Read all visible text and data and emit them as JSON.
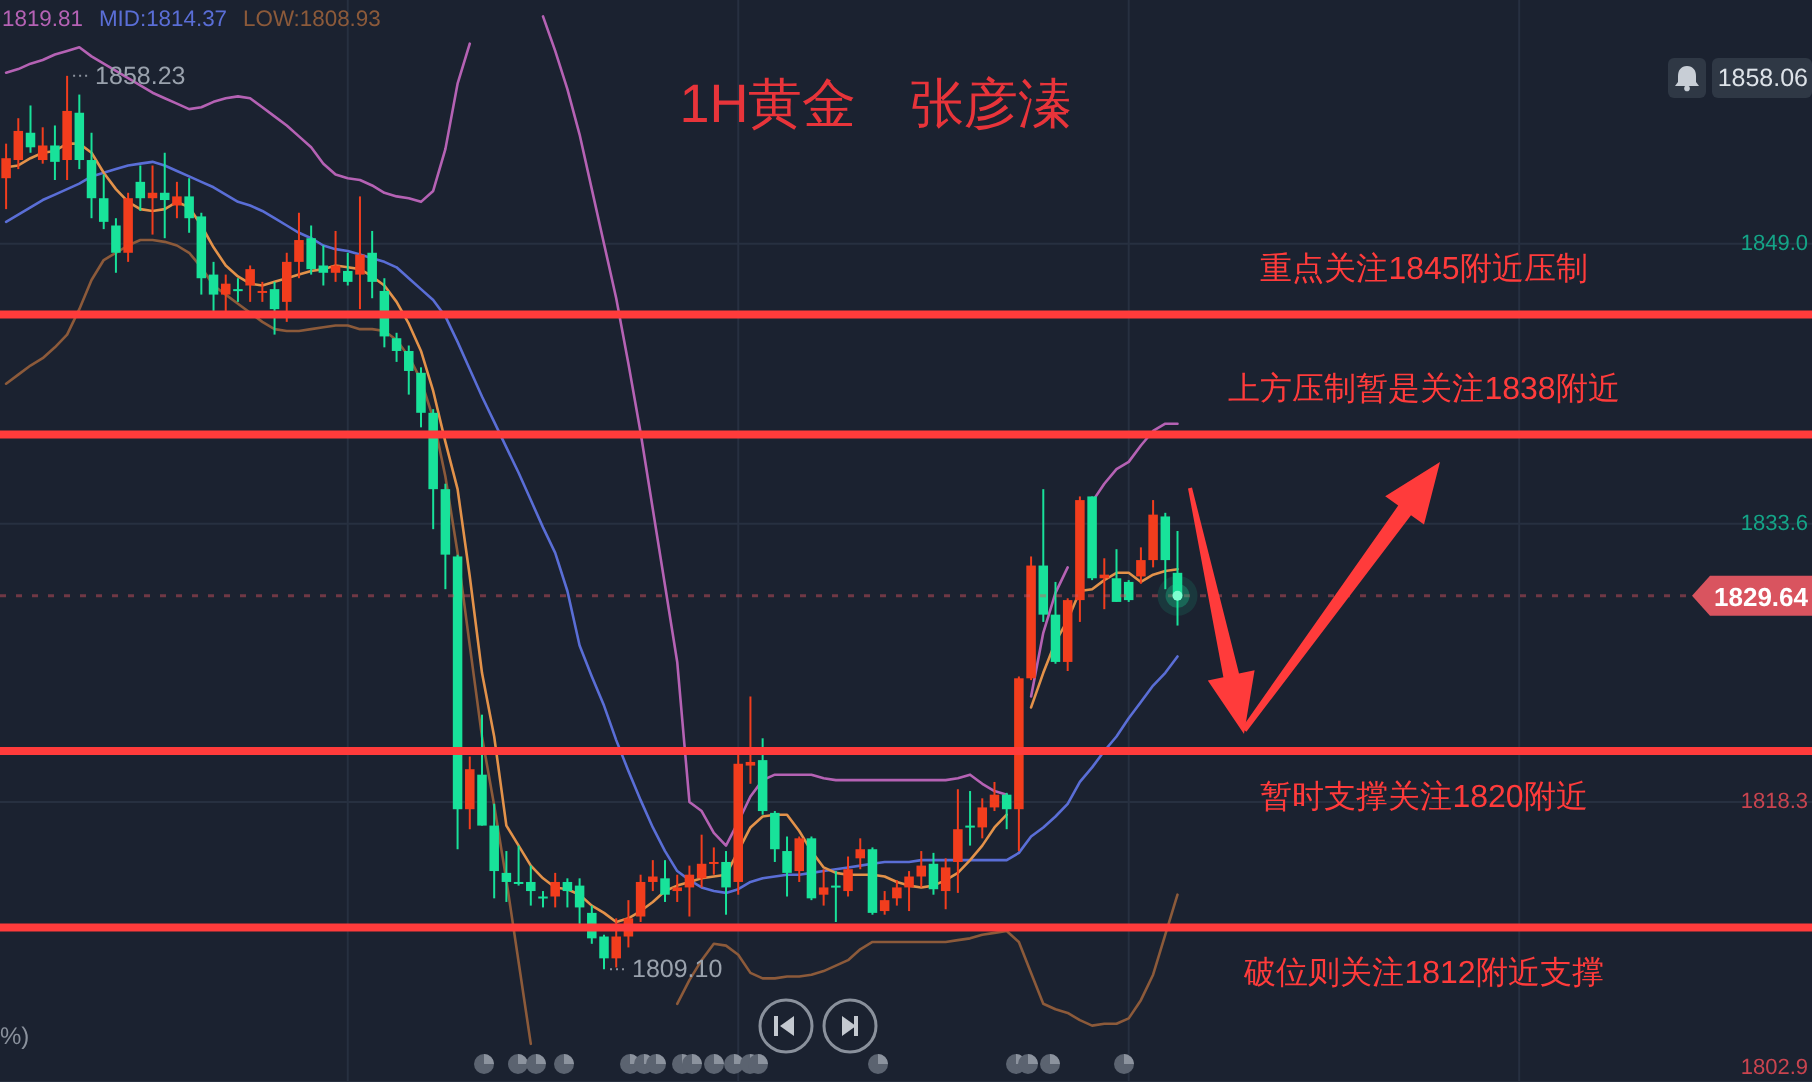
{
  "chart_data": {
    "type": "candlestick",
    "title": "1H黄金　张彦溱",
    "categories": [
      null,
      null,
      null,
      null,
      null,
      null,
      null,
      null,
      null,
      null,
      null,
      null,
      null,
      null,
      null,
      null,
      null,
      null,
      null,
      null,
      null,
      null,
      null,
      null,
      null,
      null,
      null,
      null,
      null,
      null,
      null,
      null,
      null,
      null,
      null,
      null,
      null,
      null,
      null,
      null,
      null,
      null,
      null,
      null,
      null,
      null,
      null,
      null,
      null,
      null,
      null,
      null,
      null,
      null,
      null,
      null,
      null,
      null,
      null,
      null,
      null,
      null,
      null,
      null,
      null,
      null,
      null,
      null,
      null,
      null,
      null,
      null,
      null,
      null,
      null,
      null,
      null,
      null,
      null,
      null,
      null,
      null,
      null,
      null,
      null,
      null,
      null,
      null,
      null,
      null,
      null,
      null,
      null,
      null,
      null,
      null,
      null
    ],
    "ohlc": [
      [
        1852.6,
        1854.5,
        1850.9,
        1853.7
      ],
      [
        1853.6,
        1855.9,
        1853.1,
        1855.2
      ],
      [
        1855.1,
        1856.6,
        1854.0,
        1854.3
      ],
      [
        1853.6,
        1855.4,
        1853.4,
        1854.4
      ],
      [
        1854.4,
        1855.5,
        1852.5,
        1853.5
      ],
      [
        1853.6,
        1858.23,
        1852.5,
        1856.3
      ],
      [
        1856.2,
        1857.2,
        1853.1,
        1853.6
      ],
      [
        1853.6,
        1855.1,
        1850.4,
        1851.5
      ],
      [
        1851.5,
        1852.8,
        1849.8,
        1850.2
      ],
      [
        1850.0,
        1850.4,
        1847.4,
        1848.5
      ],
      [
        1848.5,
        1851.8,
        1848.0,
        1851.5
      ],
      [
        1852.4,
        1853.3,
        1850.8,
        1851.5
      ],
      [
        1851.5,
        1853.3,
        1849.5,
        1851.8
      ],
      [
        1851.8,
        1854.0,
        1849.3,
        1851.4
      ],
      [
        1851.1,
        1852.4,
        1850.4,
        1851.6
      ],
      [
        1851.6,
        1852.6,
        1849.6,
        1850.4
      ],
      [
        1850.5,
        1850.7,
        1846.2,
        1847.1
      ],
      [
        1847.3,
        1848.0,
        1845.3,
        1846.2
      ],
      [
        1846.2,
        1847.3,
        1845.3,
        1846.8
      ],
      [
        1846.5,
        1847.1,
        1845.8,
        1846.4
      ],
      [
        1846.7,
        1847.8,
        1845.8,
        1847.6
      ],
      [
        1846.3,
        1846.9,
        1845.8,
        1846.4
      ],
      [
        1846.5,
        1846.9,
        1844.0,
        1845.4
      ],
      [
        1845.8,
        1848.5,
        1844.7,
        1848.0
      ],
      [
        1848.0,
        1850.7,
        1847.1,
        1849.2
      ],
      [
        1849.3,
        1850.0,
        1847.3,
        1847.6
      ],
      [
        1847.8,
        1848.9,
        1846.7,
        1847.4
      ],
      [
        1847.4,
        1849.7,
        1846.9,
        1847.8
      ],
      [
        1847.5,
        1848.5,
        1846.7,
        1846.9
      ],
      [
        1847.3,
        1851.6,
        1845.4,
        1848.4
      ],
      [
        1848.5,
        1849.7,
        1846.0,
        1846.9
      ],
      [
        1846.4,
        1847.1,
        1843.3,
        1843.9
      ],
      [
        1843.8,
        1844.1,
        1842.5,
        1843.1
      ],
      [
        1843.1,
        1843.4,
        1840.7,
        1842.0
      ],
      [
        1841.9,
        1842.2,
        1838.9,
        1839.7
      ],
      [
        1839.7,
        1839.9,
        1833.3,
        1835.5
      ],
      [
        1835.5,
        1835.8,
        1830.0,
        1831.9
      ],
      [
        1831.8,
        1831.9,
        1815.7,
        1817.9
      ],
      [
        1817.9,
        1820.8,
        1816.8,
        1820.1
      ],
      [
        1819.8,
        1823.1,
        1817.0,
        1817.0
      ],
      [
        1817.0,
        1818.2,
        1813.0,
        1814.5
      ],
      [
        1814.4,
        1815.6,
        1812.8,
        1813.9
      ],
      [
        1813.9,
        1815.9,
        1813.7,
        1813.8
      ],
      [
        1813.9,
        1814.8,
        1812.6,
        1813.4
      ],
      [
        1813.1,
        1813.4,
        1812.5,
        1813.0
      ],
      [
        1813.1,
        1814.4,
        1812.5,
        1813.9
      ],
      [
        1813.9,
        1814.1,
        1812.5,
        1813.4
      ],
      [
        1813.7,
        1814.1,
        1811.6,
        1812.5
      ],
      [
        1812.2,
        1812.6,
        1810.5,
        1810.8
      ],
      [
        1810.9,
        1811.0,
        1809.1,
        1809.7
      ],
      [
        1809.7,
        1811.9,
        1809.2,
        1810.9
      ],
      [
        1810.9,
        1812.9,
        1810.3,
        1811.9
      ],
      [
        1812.0,
        1814.3,
        1811.7,
        1813.9
      ],
      [
        1813.9,
        1815.1,
        1813.4,
        1814.2
      ],
      [
        1814.1,
        1815.1,
        1812.8,
        1813.2
      ],
      [
        1813.4,
        1814.3,
        1812.8,
        1813.6
      ],
      [
        1813.6,
        1814.8,
        1812.0,
        1814.3
      ],
      [
        1814.1,
        1816.5,
        1813.6,
        1814.9
      ],
      [
        1814.9,
        1815.8,
        1814.3,
        1815.0
      ],
      [
        1815.0,
        1815.6,
        1812.1,
        1813.6
      ],
      [
        1813.9,
        1820.9,
        1813.2,
        1820.4
      ],
      [
        1820.3,
        1824.1,
        1819.3,
        1820.5
      ],
      [
        1820.6,
        1821.8,
        1817.6,
        1817.8
      ],
      [
        1817.7,
        1817.8,
        1815.0,
        1815.7
      ],
      [
        1815.6,
        1816.4,
        1813.1,
        1814.4
      ],
      [
        1814.5,
        1816.4,
        1813.9,
        1816.3
      ],
      [
        1816.3,
        1816.4,
        1812.9,
        1813.0
      ],
      [
        1813.2,
        1814.6,
        1812.6,
        1813.6
      ],
      [
        1813.7,
        1814.5,
        1811.7,
        1813.6
      ],
      [
        1813.4,
        1815.3,
        1813.1,
        1814.6
      ],
      [
        1815.2,
        1816.3,
        1814.6,
        1815.7
      ],
      [
        1815.7,
        1815.8,
        1812.1,
        1812.2
      ],
      [
        1812.3,
        1813.4,
        1812.1,
        1812.9
      ],
      [
        1813.0,
        1814.0,
        1812.6,
        1813.6
      ],
      [
        1813.6,
        1814.5,
        1812.3,
        1814.2
      ],
      [
        1814.2,
        1815.6,
        1813.6,
        1814.8
      ],
      [
        1814.9,
        1815.5,
        1813.2,
        1813.5
      ],
      [
        1813.4,
        1815.2,
        1812.4,
        1814.7
      ],
      [
        1815.0,
        1819.0,
        1813.3,
        1816.8
      ],
      [
        1817.0,
        1818.9,
        1815.9,
        1816.9
      ],
      [
        1816.9,
        1818.5,
        1816.3,
        1818.0
      ],
      [
        1818.0,
        1819.4,
        1817.8,
        1818.7
      ],
      [
        1818.7,
        1818.8,
        1816.8,
        1817.9
      ],
      [
        1817.9,
        1825.2,
        1815.6,
        1825.1
      ],
      [
        1825.1,
        1831.8,
        1825.0,
        1831.3
      ],
      [
        1831.3,
        1835.5,
        1828.2,
        1828.6
      ],
      [
        1828.6,
        1830.4,
        1825.9,
        1826.0
      ],
      [
        1826.0,
        1829.5,
        1825.5,
        1829.4
      ],
      [
        1829.4,
        1835.1,
        1828.2,
        1834.9
      ],
      [
        1835.1,
        1835.1,
        1830.5,
        1830.6
      ],
      [
        1830.6,
        1831.7,
        1828.9,
        1830.8
      ],
      [
        1830.6,
        1832.2,
        1829.3,
        1829.3
      ],
      [
        1830.4,
        1830.5,
        1829.3,
        1829.4
      ],
      [
        1830.7,
        1832.3,
        1830.3,
        1831.6
      ],
      [
        1831.6,
        1834.9,
        1831.2,
        1834.1
      ],
      [
        1834.0,
        1834.2,
        1830.0,
        1831.6
      ],
      [
        1830.9,
        1833.2,
        1828.0,
        1829.64
      ]
    ],
    "colors": [
      "#f23d1d",
      "#f23d1d",
      "#18e29a",
      "#f23d1d",
      "#18e29a",
      "#f23d1d",
      "#18e29a",
      "#18e29a",
      "#18e29a",
      "#18e29a",
      "#f23d1d",
      "#18e29a",
      "#f23d1d",
      "#18e29a",
      "#f23d1d",
      "#18e29a",
      "#18e29a",
      "#18e29a",
      "#f23d1d",
      "#18e29a",
      "#f23d1d",
      "#f23d1d",
      "#18e29a",
      "#f23d1d",
      "#f23d1d",
      "#18e29a",
      "#18e29a",
      "#f23d1d",
      "#18e29a",
      "#f23d1d",
      "#18e29a",
      "#18e29a",
      "#18e29a",
      "#18e29a",
      "#18e29a",
      "#18e29a",
      "#18e29a",
      "#18e29a",
      "#f23d1d",
      "#18e29a",
      "#18e29a",
      "#18e29a",
      "#18e29a",
      "#18e29a",
      "#18e29a",
      "#f23d1d",
      "#18e29a",
      "#18e29a",
      "#18e29a",
      "#18e29a",
      "#f23d1d",
      "#f23d1d",
      "#f23d1d",
      "#f23d1d",
      "#18e29a",
      "#f23d1d",
      "#f23d1d",
      "#f23d1d",
      "#f23d1d",
      "#18e29a",
      "#f23d1d",
      "#f23d1d",
      "#18e29a",
      "#18e29a",
      "#18e29a",
      "#f23d1d",
      "#18e29a",
      "#f23d1d",
      "#18e29a",
      "#f23d1d",
      "#f23d1d",
      "#18e29a",
      "#f23d1d",
      "#f23d1d",
      "#f23d1d",
      "#f23d1d",
      "#18e29a",
      "#f23d1d",
      "#f23d1d",
      "#18e29a",
      "#f23d1d",
      "#f23d1d",
      "#18e29a",
      "#f23d1d",
      "#f23d1d",
      "#18e29a",
      "#18e29a",
      "#f23d1d",
      "#f23d1d",
      "#18e29a",
      "#f23d1d",
      "#18e29a",
      "#18e29a",
      "#f23d1d",
      "#f23d1d",
      "#18e29a",
      "#18e29a"
    ],
    "series": [
      {
        "name": "1819.81",
        "type": "line",
        "color": "#b562b4",
        "values": [
          1858.4,
          1858.6,
          1858.9,
          1859.1,
          1859.4,
          1859.6,
          1859.8,
          1859.3,
          1858.9,
          1858.5,
          1858.1,
          1857.7,
          1857.3,
          1857.0,
          1856.7,
          1856.4,
          1856.5,
          1856.8,
          1857.0,
          1857.1,
          1857.0,
          1856.5,
          1856.0,
          1855.5,
          1854.9,
          1854.3,
          1853.4,
          1852.8,
          1852.6,
          1852.5,
          1852.2,
          1851.8,
          1851.6,
          1851.5,
          1851.3,
          1851.9,
          1854.2,
          1857.8,
          1860.0,
          null,
          null,
          null,
          null,
          null,
          1861.5,
          1859.6,
          1857.5,
          1855.0,
          1852.0,
          1849.0,
          1846.0,
          1842.4,
          1838.6,
          1834.4,
          1830.2,
          1826.0,
          1818.3,
          1817.8,
          1816.6,
          1815.9,
          1817.2,
          1818.6,
          1819.5,
          1819.8,
          1819.8,
          1819.8,
          1819.8,
          1819.6,
          1819.5,
          1819.5,
          1819.5,
          1819.5,
          1819.5,
          1819.5,
          1819.5,
          1819.5,
          1819.5,
          1819.5,
          1819.6,
          1819.8,
          1819.3,
          1818.9,
          1818.7,
          null,
          1824.1,
          1827.6,
          1829.8,
          1831.2,
          null,
          1834.8,
          1835.8,
          1836.6,
          1837.0,
          1837.9,
          1838.7,
          1839.1,
          1839.1
        ]
      },
      {
        "name": "MID:1814.37",
        "type": "line",
        "color": "#5a6ed6",
        "values": [
          1850.2,
          1850.6,
          1851.0,
          1851.4,
          1851.7,
          1852.0,
          1852.3,
          1852.7,
          1852.9,
          1853.1,
          1853.3,
          1853.4,
          1853.5,
          1853.3,
          1853.0,
          1852.7,
          1852.4,
          1852.1,
          1851.7,
          1851.3,
          1851.1,
          1850.8,
          1850.4,
          1850.0,
          1849.6,
          1849.3,
          1848.9,
          1848.7,
          1848.6,
          1848.4,
          1848.2,
          1848.0,
          1847.7,
          1847.1,
          1846.5,
          1845.9,
          1845.0,
          1843.6,
          1842.1,
          1840.6,
          1839.2,
          1837.8,
          1836.4,
          1834.9,
          1833.4,
          1832.0,
          1829.9,
          1826.9,
          1825.2,
          1823.6,
          1821.7,
          1820.0,
          1818.4,
          1816.9,
          1815.6,
          1814.5,
          1814.0,
          1813.6,
          1813.4,
          1813.3,
          1813.5,
          1813.9,
          1814.1,
          1814.2,
          1814.3,
          1814.3,
          1814.4,
          1814.5,
          1814.6,
          1814.7,
          1814.8,
          1814.9,
          1815.0,
          1815.0,
          1815.0,
          1815.1,
          1815.1,
          1815.1,
          1815.1,
          1815.1,
          1815.1,
          1815.1,
          1815.1,
          1815.5,
          1816.4,
          1816.9,
          1817.5,
          1818.2,
          1819.4,
          1820.2,
          1821.1,
          1821.9,
          1822.9,
          1823.8,
          1824.7,
          1825.4,
          1826.3
        ]
      },
      {
        "name": "LOW:1808.93",
        "type": "line",
        "color": "#8c5a3a",
        "values": [
          1841.3,
          1841.8,
          1842.3,
          1842.7,
          1843.3,
          1844.0,
          1845.4,
          1847.0,
          1848.1,
          1848.5,
          1848.9,
          1849.2,
          1849.2,
          1849.1,
          1848.9,
          1848.5,
          1847.7,
          1846.7,
          1846.2,
          1845.7,
          1845.2,
          1844.7,
          1844.3,
          1844.2,
          1844.2,
          1844.3,
          1844.4,
          1844.5,
          1844.5,
          1844.3,
          1844.3,
          1844.2,
          1843.7,
          1842.8,
          1841.5,
          1839.4,
          1836.2,
          1832.0,
          1826.9,
          1821.9,
          1818.1,
          1814.0,
          1809.5,
          1805.0,
          null,
          null,
          null,
          null,
          null,
          null,
          null,
          null,
          null,
          null,
          null,
          1807.2,
          1808.5,
          1809.6,
          1810.5,
          1810.4,
          1809.9,
          1808.9,
          1808.6,
          1808.6,
          1808.7,
          1808.7,
          1808.8,
          1809.0,
          1809.3,
          1809.6,
          1810.2,
          1810.6,
          1810.6,
          1810.6,
          1810.6,
          1810.6,
          1810.6,
          1810.6,
          1810.7,
          1810.8,
          1811.0,
          1811.1,
          1811.2,
          1810.6,
          1808.9,
          1807.2,
          1806.9,
          1806.7,
          1806.3,
          1806.0,
          1806.1,
          1806.1,
          1806.4,
          1807.4,
          1808.8,
          1811.0,
          1813.2
        ]
      },
      {
        "type": "line",
        "color": "#e3924a",
        "values": [
          1853.2,
          1853.3,
          1853.7,
          1854.0,
          1854.1,
          1854.5,
          1854.5,
          1854.0,
          1852.9,
          1852.0,
          1851.3,
          1850.9,
          1850.8,
          1850.9,
          1851.3,
          1851.0,
          1850.0,
          1848.8,
          1847.8,
          1847.2,
          1846.8,
          1846.7,
          1846.9,
          1847.1,
          1847.3,
          1847.5,
          1847.6,
          1847.8,
          1847.7,
          1847.6,
          1847.2,
          1846.7,
          1845.8,
          1844.6,
          1843.1,
          1840.9,
          1838.1,
          1835.5,
          1830.7,
          1825.4,
          1821.9,
          1817.0,
          1815.9,
          1814.8,
          1814.1,
          1813.6,
          1813.5,
          1813.2,
          1812.6,
          1812.2,
          1811.7,
          1811.9,
          1812.3,
          1812.8,
          1813.4,
          1813.7,
          1813.9,
          1814.1,
          1814.2,
          1814.3,
          1815.6,
          1816.9,
          1817.5,
          1817.6,
          1817.6,
          1816.7,
          1815.6,
          1814.7,
          1814.4,
          1814.3,
          1814.3,
          1814.3,
          1814.2,
          1813.9,
          1813.7,
          1813.6,
          1813.7,
          1814.0,
          1814.4,
          1815.1,
          1815.9,
          1816.9,
          1817.6,
          null,
          1823.5,
          1825.4,
          1827.1,
          1828.3,
          1829.9,
          1830.0,
          1830.5,
          1830.9,
          1830.9,
          1830.4,
          1830.8,
          1831.0,
          1831.1
        ]
      }
    ],
    "ylim": [
      1802.9,
      1862.4
    ],
    "yticks": [
      {
        "value": 1849.0,
        "label": "1849.0"
      },
      {
        "value": 1833.6,
        "label": "1833.6"
      },
      {
        "value": 1818.3,
        "label": "1818.3"
      },
      {
        "value": 1802.9,
        "label": "1802.9"
      }
    ],
    "ref_lines": [
      {
        "axis": "y",
        "value": 1845.1,
        "label": "重点关注1845附近压制",
        "color": "#ff3b3b"
      },
      {
        "axis": "y",
        "value": 1838.5,
        "label": "上方压制暂是关注1838附近",
        "color": "#ff3b3b"
      },
      {
        "axis": "y",
        "value": 1821.1,
        "label": "暂时支撑关注1820附近",
        "color": "#ff3b3b"
      },
      {
        "axis": "y",
        "value": 1811.4,
        "label": "破位则关注1812附近支撑",
        "color": "#ff3b3b"
      },
      {
        "axis": "y",
        "value": 1829.64,
        "label": "1829.64",
        "color": "#d9545f",
        "line_style": "dotted"
      }
    ],
    "annotations": [
      {
        "text": "1858.23",
        "y": 1858.23
      },
      "1809.10",
      "1858.06",
      "%)"
    ],
    "grid": true,
    "tick_labels": "y"
  }
}
